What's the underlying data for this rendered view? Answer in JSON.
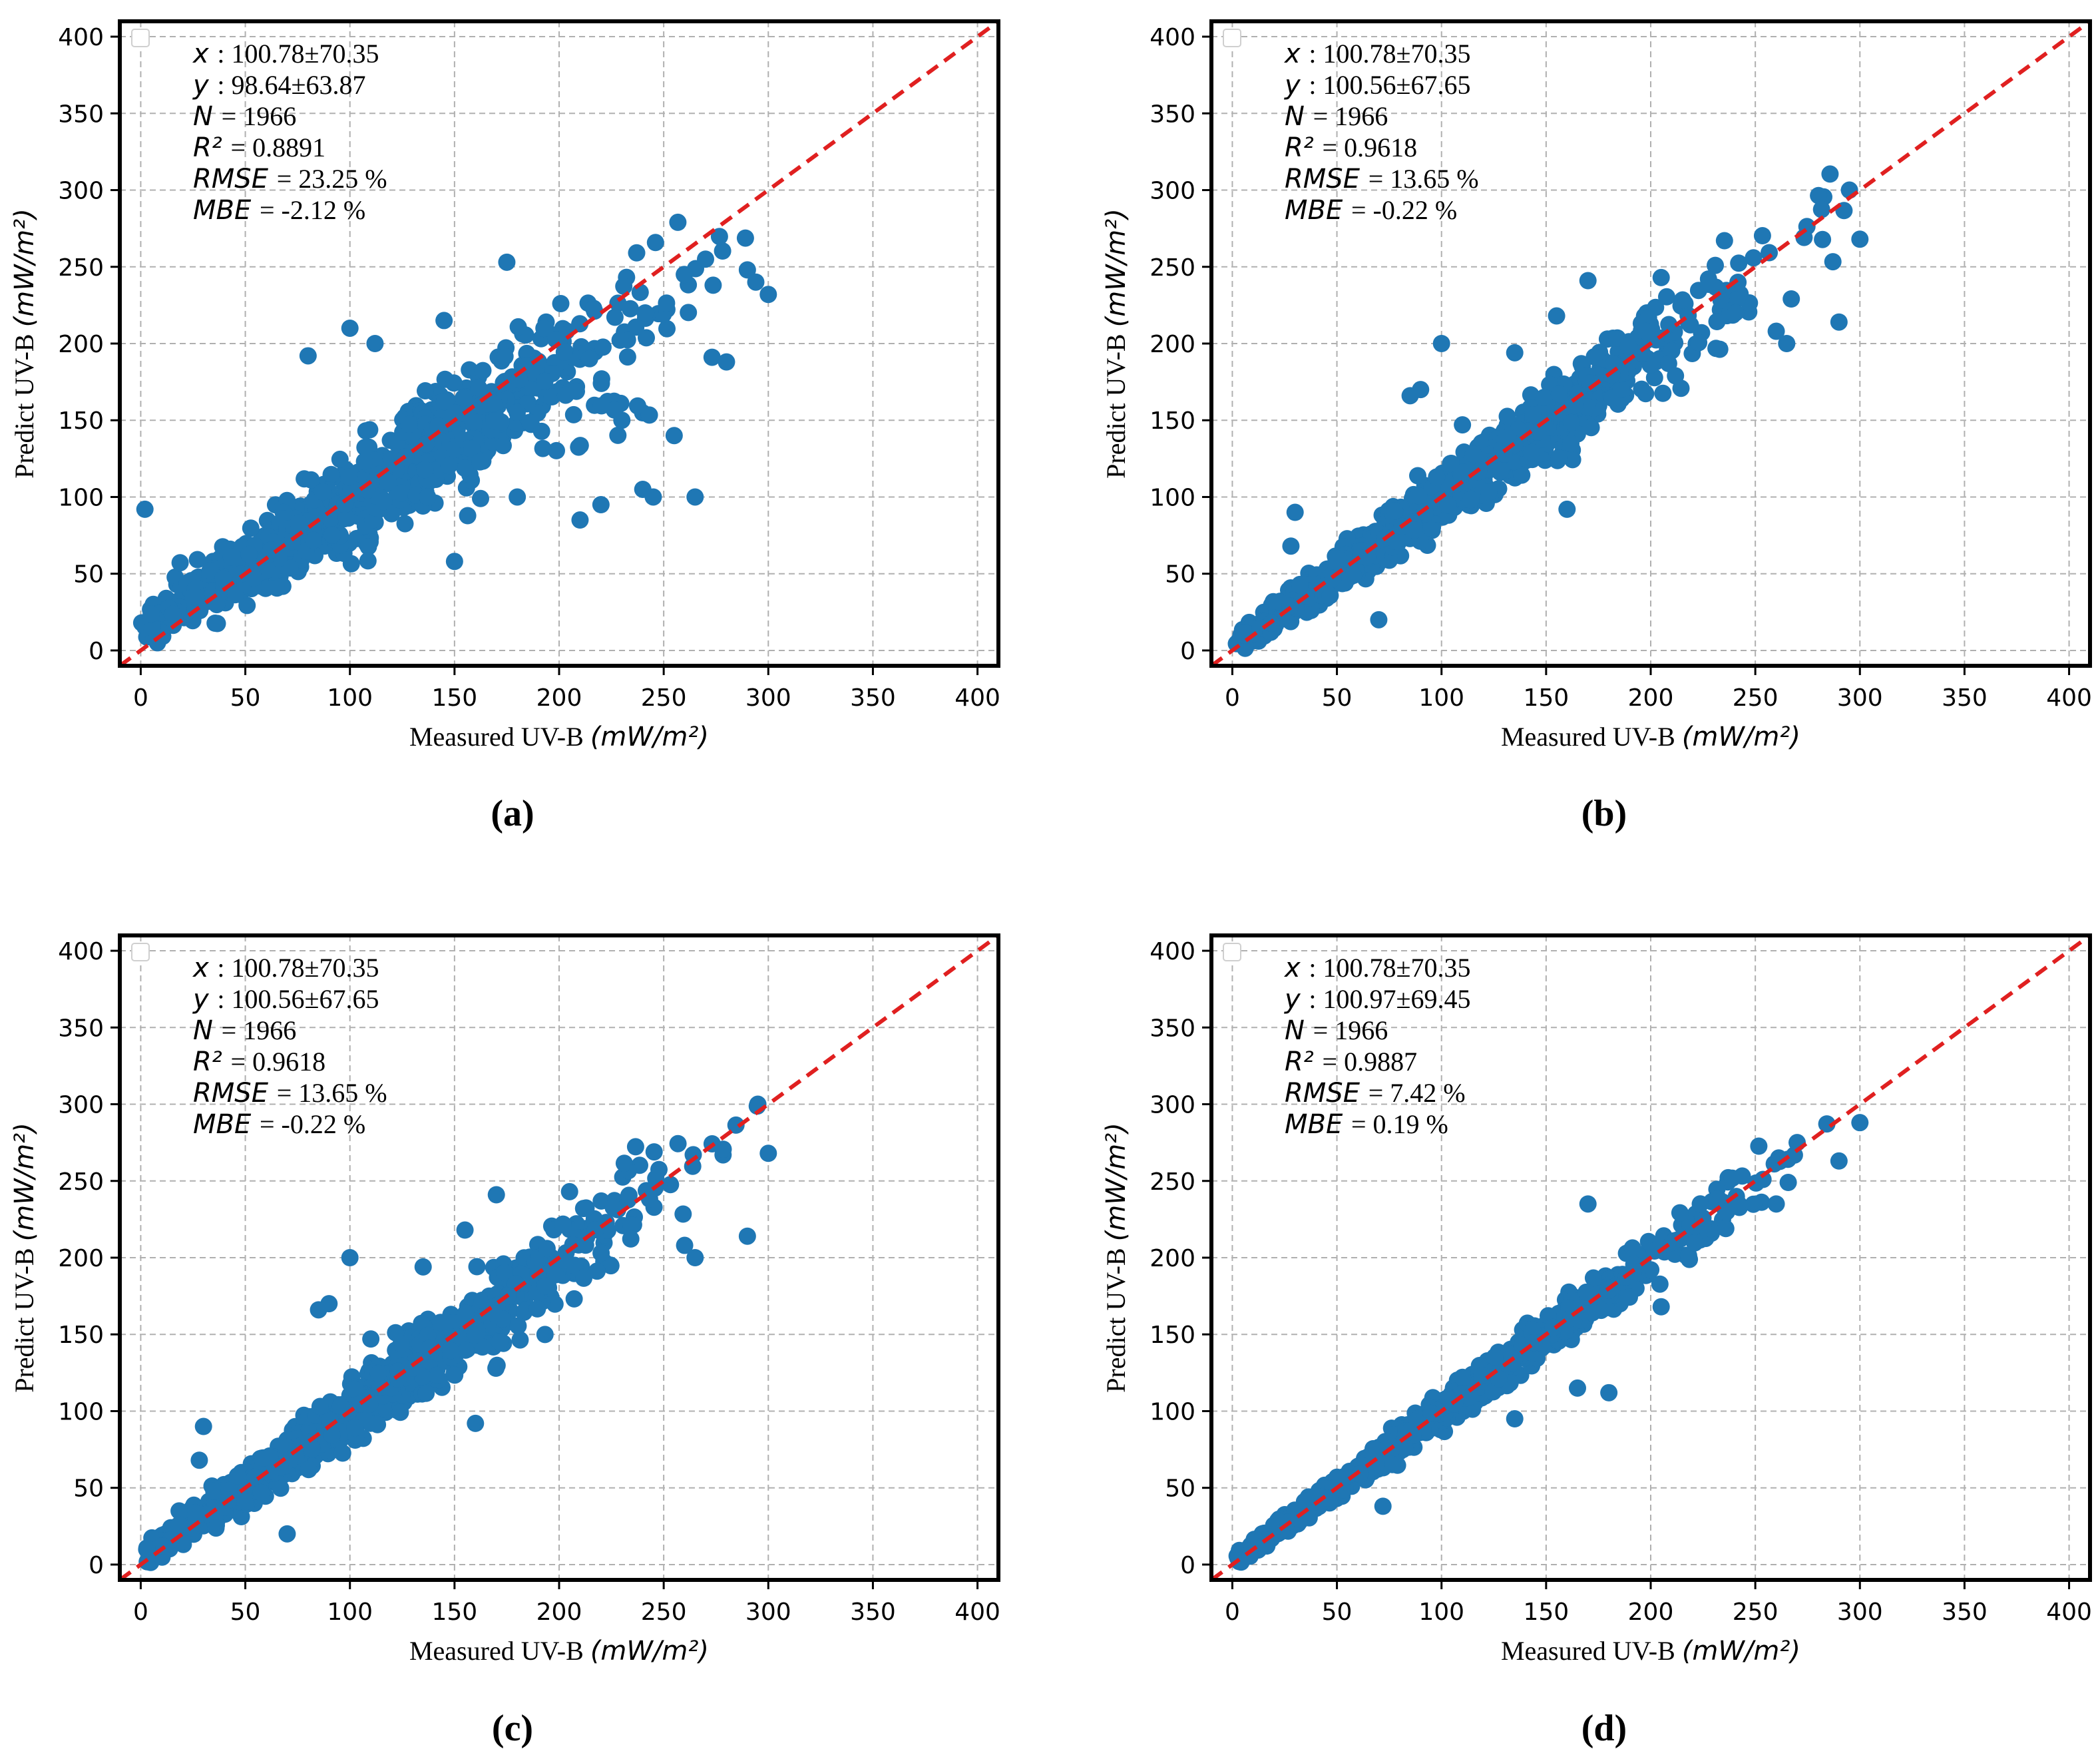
{
  "figure": {
    "panel_order": [
      "a",
      "b",
      "c",
      "d"
    ]
  },
  "chart_data": [
    {
      "id": "a",
      "type": "scatter",
      "panel_label": "(a)",
      "xlabel": "Measured UV-B",
      "xlabel_unit": "(mW/m²)",
      "ylabel": "Predict UV-B",
      "ylabel_unit": "(mW/m²)",
      "xlim": [
        -10,
        410
      ],
      "ylim": [
        -10,
        410
      ],
      "xticks": [
        0,
        50,
        100,
        150,
        200,
        250,
        300,
        350,
        400
      ],
      "yticks": [
        0,
        50,
        100,
        150,
        200,
        250,
        300,
        350,
        400
      ],
      "grid": true,
      "legend": "top-left",
      "reference_line": {
        "type": "1:1",
        "style": "dashed",
        "color": "#e02020"
      },
      "point_color": "#1f77b4",
      "stats": [
        {
          "label": "x",
          "value": ": 100.78±70.35"
        },
        {
          "label": "y",
          "value": ": 98.64±63.87"
        },
        {
          "label": "N",
          "value": "= 1966"
        },
        {
          "label": "R²",
          "value": "= 0.8891"
        },
        {
          "label": "RMSE",
          "value": "= 23.25 %"
        },
        {
          "label": "MBE",
          "value": "= -2.12 %"
        }
      ],
      "fit": {
        "n": 1966,
        "mean_x": 100.78,
        "sd_x": 70.35,
        "slope": 0.86,
        "intercept": 12,
        "noise": 15
      },
      "outliers": [
        [
          2,
          92
        ],
        [
          8,
          5
        ],
        [
          80,
          192
        ],
        [
          100,
          210
        ],
        [
          112,
          200
        ],
        [
          145,
          215
        ],
        [
          175,
          253
        ],
        [
          180,
          100
        ],
        [
          210,
          85
        ],
        [
          220,
          95
        ],
        [
          240,
          105
        ],
        [
          245,
          100
        ],
        [
          265,
          100
        ],
        [
          255,
          140
        ],
        [
          280,
          188
        ],
        [
          300,
          232
        ],
        [
          290,
          248
        ],
        [
          270,
          255
        ],
        [
          230,
          150
        ],
        [
          150,
          58
        ]
      ]
    },
    {
      "id": "b",
      "type": "scatter",
      "panel_label": "(b)",
      "xlabel": "Measured UV-B",
      "xlabel_unit": "(mW/m²)",
      "ylabel": "Predict UV-B",
      "ylabel_unit": "(mW/m²)",
      "xlim": [
        -10,
        410
      ],
      "ylim": [
        -10,
        410
      ],
      "xticks": [
        0,
        50,
        100,
        150,
        200,
        250,
        300,
        350,
        400
      ],
      "yticks": [
        0,
        50,
        100,
        150,
        200,
        250,
        300,
        350,
        400
      ],
      "grid": true,
      "legend": "top-left",
      "reference_line": {
        "type": "1:1",
        "style": "dashed",
        "color": "#e02020"
      },
      "point_color": "#1f77b4",
      "stats": [
        {
          "label": "x",
          "value": ": 100.78±70.35"
        },
        {
          "label": "y",
          "value": ": 100.56±67.65"
        },
        {
          "label": "N",
          "value": "= 1966"
        },
        {
          "label": "R²",
          "value": "= 0.9618"
        },
        {
          "label": "RMSE",
          "value": "= 13.65 %"
        },
        {
          "label": "MBE",
          "value": "= -0.22 %"
        }
      ],
      "fit": {
        "n": 1966,
        "mean_x": 100.78,
        "sd_x": 70.35,
        "slope": 0.96,
        "intercept": 3,
        "noise": 9
      },
      "outliers": [
        [
          100,
          200
        ],
        [
          85,
          166
        ],
        [
          90,
          170
        ],
        [
          135,
          194
        ],
        [
          170,
          241
        ],
        [
          155,
          218
        ],
        [
          205,
          243
        ],
        [
          260,
          208
        ],
        [
          265,
          200
        ],
        [
          290,
          214
        ],
        [
          300,
          268
        ],
        [
          295,
          300
        ],
        [
          70,
          20
        ],
        [
          160,
          92
        ],
        [
          30,
          90
        ],
        [
          28,
          68
        ],
        [
          110,
          147
        ],
        [
          130,
          128
        ]
      ]
    },
    {
      "id": "c",
      "type": "scatter",
      "panel_label": "(c)",
      "xlabel": "Measured UV-B",
      "xlabel_unit": "(mW/m²)",
      "ylabel": "Predict UV-B",
      "ylabel_unit": "(mW/m²)",
      "xlim": [
        -10,
        410
      ],
      "ylim": [
        -10,
        410
      ],
      "xticks": [
        0,
        50,
        100,
        150,
        200,
        250,
        300,
        350,
        400
      ],
      "yticks": [
        0,
        50,
        100,
        150,
        200,
        250,
        300,
        350,
        400
      ],
      "grid": true,
      "legend": "top-left",
      "reference_line": {
        "type": "1:1",
        "style": "dashed",
        "color": "#e02020"
      },
      "point_color": "#1f77b4",
      "stats": [
        {
          "label": "x",
          "value": ": 100.78±70.35"
        },
        {
          "label": "y",
          "value": ": 100.56±67.65"
        },
        {
          "label": "N",
          "value": "= 1966"
        },
        {
          "label": "R²",
          "value": "= 0.9618"
        },
        {
          "label": "RMSE",
          "value": "= 13.65 %"
        },
        {
          "label": "MBE",
          "value": "= -0.22 %"
        }
      ],
      "fit": {
        "n": 1966,
        "mean_x": 100.78,
        "sd_x": 70.35,
        "slope": 0.96,
        "intercept": 3,
        "noise": 9
      },
      "outliers": [
        [
          100,
          200
        ],
        [
          85,
          166
        ],
        [
          90,
          170
        ],
        [
          135,
          194
        ],
        [
          170,
          241
        ],
        [
          155,
          218
        ],
        [
          205,
          243
        ],
        [
          260,
          208
        ],
        [
          265,
          200
        ],
        [
          290,
          214
        ],
        [
          300,
          268
        ],
        [
          295,
          300
        ],
        [
          70,
          20
        ],
        [
          160,
          92
        ],
        [
          30,
          90
        ],
        [
          28,
          68
        ],
        [
          110,
          147
        ],
        [
          130,
          128
        ]
      ]
    },
    {
      "id": "d",
      "type": "scatter",
      "panel_label": "(d)",
      "xlabel": "Measured UV-B",
      "xlabel_unit": "(mW/m²)",
      "ylabel": "Predict UV-B",
      "ylabel_unit": "(mW/m²)",
      "xlim": [
        -10,
        410
      ],
      "ylim": [
        -10,
        410
      ],
      "xticks": [
        0,
        50,
        100,
        150,
        200,
        250,
        300,
        350,
        400
      ],
      "yticks": [
        0,
        50,
        100,
        150,
        200,
        250,
        300,
        350,
        400
      ],
      "grid": true,
      "legend": "top-left",
      "reference_line": {
        "type": "1:1",
        "style": "dashed",
        "color": "#e02020"
      },
      "point_color": "#1f77b4",
      "stats": [
        {
          "label": "x",
          "value": ": 100.78±70.35"
        },
        {
          "label": "y",
          "value": ": 100.97±69.45"
        },
        {
          "label": "N",
          "value": "= 1966"
        },
        {
          "label": "R²",
          "value": "= 0.9887"
        },
        {
          "label": "RMSE",
          "value": "= 7.42 %"
        },
        {
          "label": "MBE",
          "value": "= 0.19 %"
        }
      ],
      "fit": {
        "n": 1966,
        "mean_x": 100.78,
        "sd_x": 70.35,
        "slope": 0.99,
        "intercept": 1,
        "noise": 5
      },
      "outliers": [
        [
          170,
          235
        ],
        [
          165,
          115
        ],
        [
          180,
          112
        ],
        [
          135,
          95
        ],
        [
          72,
          38
        ],
        [
          205,
          168
        ],
        [
          290,
          263
        ],
        [
          260,
          235
        ],
        [
          300,
          288
        ],
        [
          110,
          122
        ],
        [
          270,
          275
        ]
      ]
    }
  ]
}
